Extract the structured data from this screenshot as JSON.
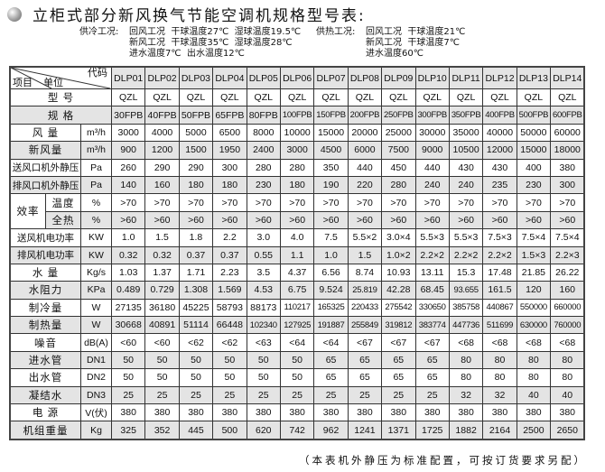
{
  "title": "立柜式部分新风换气节能空调机规格型号表:",
  "cooling": {
    "label": "供冷工况:",
    "lines": [
      "回风工况  干球温度27℃  湿球温度19.5℃",
      "新风工况  干球温度35℃  湿球温度28℃",
      "进水温度7℃  出水温度12℃"
    ]
  },
  "heating": {
    "label": "供热工况:",
    "lines": [
      "回风工况  干球温度21℃",
      "新风工况  干球温度7℃",
      "进水温度60℃"
    ]
  },
  "table": {
    "corner": {
      "code": "代码",
      "unit": "单位",
      "item": "项目"
    },
    "codes": [
      "DLP01",
      "DLP02",
      "DLP03",
      "DLP04",
      "DLP05",
      "DLP06",
      "DLP07",
      "DLP08",
      "DLP09",
      "DLP10",
      "DLP11",
      "DLP12",
      "DLP13",
      "DLP14"
    ],
    "rows": [
      {
        "label": "型  号",
        "unit": "",
        "values": [
          "QZL",
          "QZL",
          "QZL",
          "QZL",
          "QZL",
          "QZL",
          "QZL",
          "QZL",
          "QZL",
          "QZL",
          "QZL",
          "QZL",
          "QZL",
          "QZL"
        ]
      },
      {
        "label": "规  格",
        "unit": "",
        "values": [
          "30FPB",
          "40FPB",
          "50FPB",
          "65FPB",
          "80FPB",
          "100FPB",
          "150FPB",
          "200FPB",
          "250FPB",
          "300FPB",
          "350FPB",
          "400FPB",
          "500FPB",
          "600FPB"
        ]
      },
      {
        "label": "风  量",
        "unit": "m³/h",
        "values": [
          "3000",
          "4000",
          "5000",
          "6500",
          "8000",
          "10000",
          "15000",
          "20000",
          "25000",
          "30000",
          "35000",
          "40000",
          "50000",
          "60000"
        ]
      },
      {
        "label": "新风量",
        "unit": "m³/h",
        "values": [
          "900",
          "1200",
          "1500",
          "1950",
          "2400",
          "3000",
          "4500",
          "6000",
          "7500",
          "9000",
          "10500",
          "12000",
          "15000",
          "18000"
        ]
      },
      {
        "label": "送风口机外静压",
        "unit": "Pa",
        "values": [
          "260",
          "290",
          "290",
          "300",
          "280",
          "280",
          "350",
          "440",
          "450",
          "440",
          "430",
          "430",
          "400",
          "380"
        ]
      },
      {
        "label": "排风口机外静压",
        "unit": "Pa",
        "values": [
          "140",
          "160",
          "180",
          "180",
          "230",
          "180",
          "190",
          "220",
          "280",
          "240",
          "240",
          "235",
          "230",
          "300"
        ]
      },
      {
        "group": "效率",
        "label": "温度",
        "unit": "%",
        "values": [
          ">70",
          ">70",
          ">70",
          ">70",
          ">70",
          ">70",
          ">70",
          ">70",
          ">70",
          ">70",
          ">70",
          ">70",
          ">70",
          ">70"
        ]
      },
      {
        "group": "效率",
        "label": "全热",
        "unit": "%",
        "values": [
          ">60",
          ">60",
          ">60",
          ">60",
          ">60",
          ">60",
          ">60",
          ">60",
          ">60",
          ">60",
          ">60",
          ">60",
          ">60",
          ">60"
        ]
      },
      {
        "label": "送风机电功率",
        "unit": "KW",
        "values": [
          "1.0",
          "1.5",
          "1.8",
          "2.2",
          "3.0",
          "4.0",
          "7.5",
          "5.5×2",
          "3.0×4",
          "5.5×3",
          "5.5×3",
          "7.5×3",
          "7.5×4",
          "7.5×4"
        ]
      },
      {
        "label": "排风机电功率",
        "unit": "KW",
        "values": [
          "0.32",
          "0.32",
          "0.37",
          "0.37",
          "0.55",
          "1.1",
          "1.0",
          "1.5",
          "1.0×2",
          "2.2×2",
          "2.2×2",
          "2.2×2",
          "1.5×3",
          "2.2×3"
        ]
      },
      {
        "label": "水  量",
        "unit": "Kg/s",
        "values": [
          "1.03",
          "1.37",
          "1.71",
          "2.23",
          "3.5",
          "4.37",
          "6.56",
          "8.74",
          "10.93",
          "13.11",
          "15.3",
          "17.48",
          "21.85",
          "26.22"
        ]
      },
      {
        "label": "水阻力",
        "unit": "KPa",
        "values": [
          "0.489",
          "0.729",
          "1.308",
          "1.569",
          "4.53",
          "6.75",
          "9.524",
          "25.819",
          "42.28",
          "68.45",
          "93.655",
          "161.5",
          "120",
          "160"
        ]
      },
      {
        "label": "制冷量",
        "unit": "W",
        "values": [
          "27135",
          "36180",
          "45225",
          "58793",
          "88173",
          "110217",
          "165325",
          "220433",
          "275542",
          "330650",
          "385758",
          "440867",
          "550000",
          "660000"
        ]
      },
      {
        "label": "制热量",
        "unit": "W",
        "values": [
          "30668",
          "40891",
          "51114",
          "66448",
          "102340",
          "127925",
          "191887",
          "255849",
          "319812",
          "383774",
          "447736",
          "511699",
          "630000",
          "760000"
        ]
      },
      {
        "label": "噪音",
        "unit": "dB(A)",
        "values": [
          "<60",
          "<60",
          "<62",
          "<62",
          "<63",
          "<64",
          "<64",
          "<67",
          "<67",
          "<67",
          "<68",
          "<68",
          "<68",
          "<68"
        ]
      },
      {
        "label": "进水管",
        "unit": "DN1",
        "values": [
          "50",
          "50",
          "50",
          "50",
          "50",
          "50",
          "65",
          "65",
          "65",
          "65",
          "80",
          "80",
          "80",
          "80"
        ]
      },
      {
        "label": "出水管",
        "unit": "DN2",
        "values": [
          "50",
          "50",
          "50",
          "50",
          "50",
          "50",
          "65",
          "65",
          "65",
          "65",
          "80",
          "80",
          "80",
          "80"
        ]
      },
      {
        "label": "凝结水",
        "unit": "DN3",
        "values": [
          "25",
          "25",
          "25",
          "25",
          "25",
          "25",
          "25",
          "25",
          "25",
          "25",
          "32",
          "32",
          "40",
          "40"
        ]
      },
      {
        "label": "电  源",
        "unit": "V(伏)",
        "values": [
          "380",
          "380",
          "380",
          "380",
          "380",
          "380",
          "380",
          "380",
          "380",
          "380",
          "380",
          "380",
          "380",
          "380"
        ]
      },
      {
        "label": "机组重量",
        "unit": "Kg",
        "values": [
          "325",
          "352",
          "445",
          "500",
          "620",
          "742",
          "962",
          "1241",
          "1371",
          "1725",
          "1882",
          "2164",
          "2500",
          "2650"
        ]
      }
    ]
  },
  "footnote": "（本表机外静压为标准配置，可按订货要求另配）"
}
